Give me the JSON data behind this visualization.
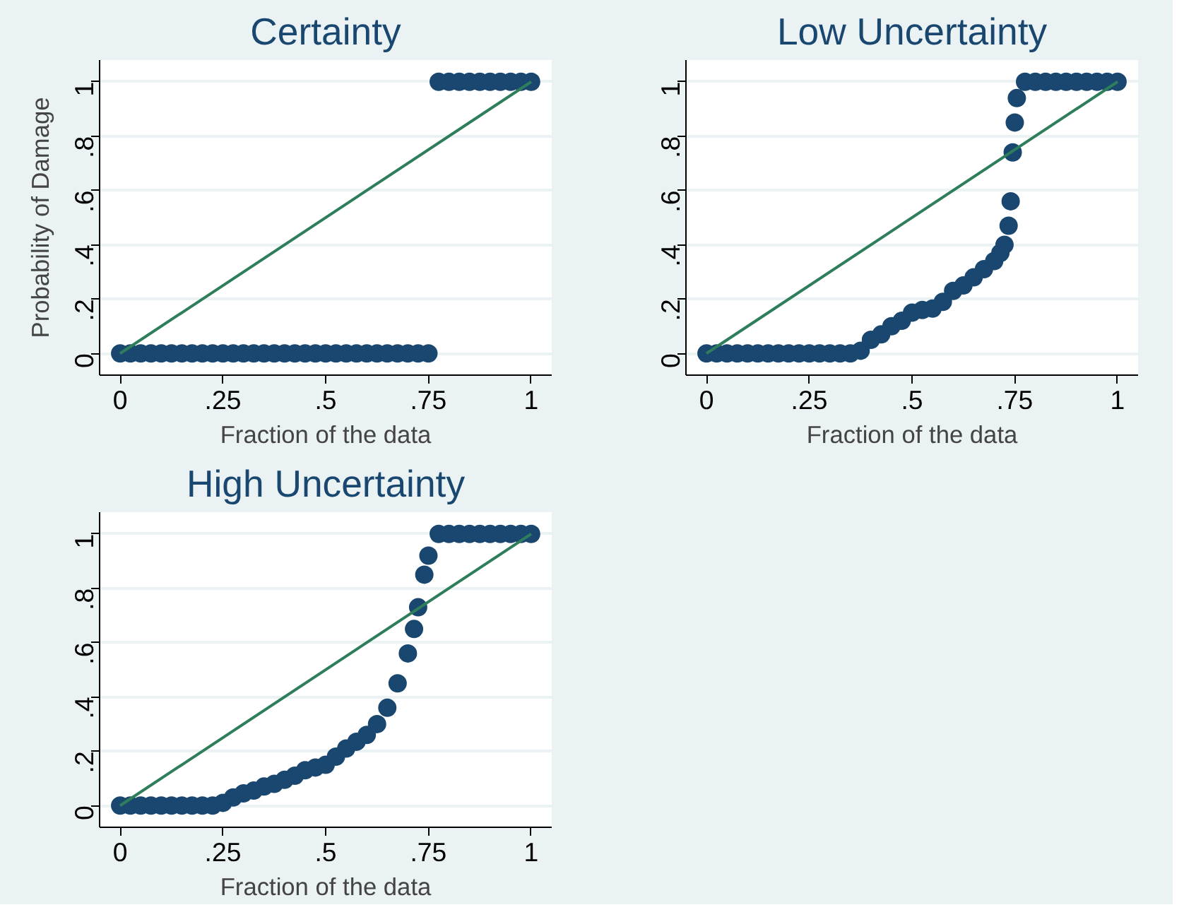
{
  "chart_data": [
    {
      "type": "scatter",
      "title": "Certainty",
      "xlabel": "Fraction of the data",
      "ylabel": "Probability of Damage",
      "xlim": [
        -0.05,
        1.05
      ],
      "ylim": [
        -0.08,
        1.08
      ],
      "xticks": [
        {
          "value": 0,
          "label": "0"
        },
        {
          "value": 0.25,
          "label": ".25"
        },
        {
          "value": 0.5,
          "label": ".5"
        },
        {
          "value": 0.75,
          "label": ".75"
        },
        {
          "value": 1,
          "label": "1"
        }
      ],
      "yticks": [
        {
          "value": 0,
          "label": "0"
        },
        {
          "value": 0.2,
          "label": ".2"
        },
        {
          "value": 0.4,
          "label": ".4"
        },
        {
          "value": 0.6,
          "label": ".6"
        },
        {
          "value": 0.8,
          "label": ".8"
        },
        {
          "value": 1,
          "label": "1"
        }
      ],
      "grid": "y",
      "series": [
        {
          "marker": "circle",
          "color": "#1a476f",
          "x": [
            0,
            0.025,
            0.05,
            0.075,
            0.1,
            0.125,
            0.15,
            0.175,
            0.2,
            0.225,
            0.25,
            0.275,
            0.3,
            0.325,
            0.35,
            0.375,
            0.4,
            0.425,
            0.45,
            0.475,
            0.5,
            0.525,
            0.55,
            0.575,
            0.6,
            0.625,
            0.65,
            0.675,
            0.7,
            0.725,
            0.75,
            0.775,
            0.8,
            0.825,
            0.85,
            0.875,
            0.9,
            0.925,
            0.95,
            0.975,
            1
          ],
          "values": [
            0,
            0,
            0,
            0,
            0,
            0,
            0,
            0,
            0,
            0,
            0,
            0,
            0,
            0,
            0,
            0,
            0,
            0,
            0,
            0,
            0,
            0,
            0,
            0,
            0,
            0,
            0,
            0,
            0,
            0,
            0,
            1,
            1,
            1,
            1,
            1,
            1,
            1,
            1,
            1,
            1
          ]
        },
        {
          "type": "line",
          "color": "#2e7d5b",
          "x": [
            0,
            1
          ],
          "values": [
            0,
            1
          ]
        }
      ]
    },
    {
      "type": "scatter",
      "title": "Low Uncertainty",
      "xlabel": "Fraction of the data",
      "xlim": [
        -0.05,
        1.05
      ],
      "ylim": [
        -0.08,
        1.08
      ],
      "xticks": [
        {
          "value": 0,
          "label": "0"
        },
        {
          "value": 0.25,
          "label": ".25"
        },
        {
          "value": 0.5,
          "label": ".5"
        },
        {
          "value": 0.75,
          "label": ".75"
        },
        {
          "value": 1,
          "label": "1"
        }
      ],
      "yticks": [
        {
          "value": 0,
          "label": "0"
        },
        {
          "value": 0.2,
          "label": ".2"
        },
        {
          "value": 0.4,
          "label": ".4"
        },
        {
          "value": 0.6,
          "label": ".6"
        },
        {
          "value": 0.8,
          "label": ".8"
        },
        {
          "value": 1,
          "label": "1"
        }
      ],
      "grid": "y",
      "series": [
        {
          "marker": "circle",
          "color": "#1a476f",
          "x": [
            0,
            0.025,
            0.05,
            0.075,
            0.1,
            0.125,
            0.15,
            0.175,
            0.2,
            0.225,
            0.25,
            0.275,
            0.3,
            0.325,
            0.35,
            0.375,
            0.4,
            0.425,
            0.45,
            0.475,
            0.5,
            0.525,
            0.55,
            0.575,
            0.6,
            0.625,
            0.65,
            0.675,
            0.7,
            0.715,
            0.725,
            0.735,
            0.74,
            0.745,
            0.75,
            0.755,
            0.775,
            0.8,
            0.825,
            0.85,
            0.875,
            0.9,
            0.925,
            0.95,
            0.975,
            1
          ],
          "values": [
            0,
            0,
            0,
            0,
            0,
            0,
            0,
            0,
            0,
            0,
            0,
            0,
            0,
            0,
            0,
            0.01,
            0.05,
            0.07,
            0.1,
            0.12,
            0.15,
            0.16,
            0.165,
            0.19,
            0.23,
            0.25,
            0.28,
            0.31,
            0.34,
            0.37,
            0.4,
            0.47,
            0.56,
            0.74,
            0.85,
            0.94,
            1,
            1,
            1,
            1,
            1,
            1,
            1,
            1,
            1,
            1
          ]
        },
        {
          "type": "line",
          "color": "#2e7d5b",
          "x": [
            0,
            1
          ],
          "values": [
            0,
            1
          ]
        }
      ]
    },
    {
      "type": "scatter",
      "title": "High Uncertainty",
      "xlabel": "Fraction of the data",
      "xlim": [
        -0.05,
        1.05
      ],
      "ylim": [
        -0.08,
        1.08
      ],
      "xticks": [
        {
          "value": 0,
          "label": "0"
        },
        {
          "value": 0.25,
          "label": ".25"
        },
        {
          "value": 0.5,
          "label": ".5"
        },
        {
          "value": 0.75,
          "label": ".75"
        },
        {
          "value": 1,
          "label": "1"
        }
      ],
      "yticks": [
        {
          "value": 0,
          "label": "0"
        },
        {
          "value": 0.2,
          "label": ".2"
        },
        {
          "value": 0.4,
          "label": ".4"
        },
        {
          "value": 0.6,
          "label": ".6"
        },
        {
          "value": 0.8,
          "label": ".8"
        },
        {
          "value": 1,
          "label": "1"
        }
      ],
      "grid": "y",
      "series": [
        {
          "marker": "circle",
          "color": "#1a476f",
          "x": [
            0,
            0.025,
            0.05,
            0.075,
            0.1,
            0.125,
            0.15,
            0.175,
            0.2,
            0.225,
            0.25,
            0.275,
            0.3,
            0.325,
            0.35,
            0.375,
            0.4,
            0.425,
            0.45,
            0.475,
            0.5,
            0.525,
            0.55,
            0.575,
            0.6,
            0.625,
            0.65,
            0.675,
            0.7,
            0.715,
            0.725,
            0.74,
            0.75,
            0.775,
            0.8,
            0.825,
            0.85,
            0.875,
            0.9,
            0.925,
            0.95,
            0.975,
            1
          ],
          "values": [
            0,
            0,
            0,
            0,
            0,
            0,
            0,
            0,
            0,
            0,
            0.01,
            0.03,
            0.045,
            0.055,
            0.07,
            0.08,
            0.095,
            0.11,
            0.13,
            0.14,
            0.15,
            0.18,
            0.21,
            0.235,
            0.26,
            0.3,
            0.36,
            0.45,
            0.56,
            0.65,
            0.73,
            0.85,
            0.92,
            1,
            1,
            1,
            1,
            1,
            1,
            1,
            1,
            1,
            1
          ]
        },
        {
          "type": "line",
          "color": "#2e7d5b",
          "x": [
            0,
            1
          ],
          "values": [
            0,
            1
          ]
        }
      ]
    }
  ]
}
